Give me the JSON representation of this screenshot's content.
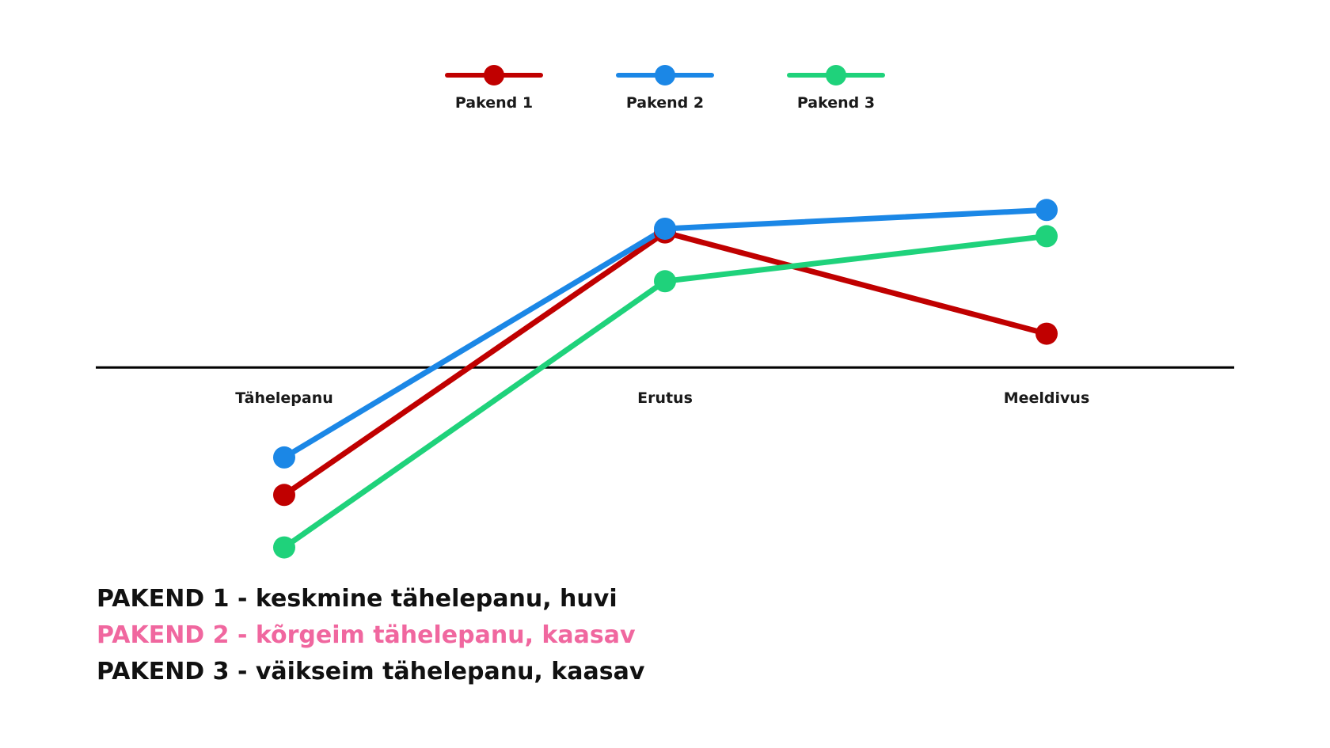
{
  "chart_data": {
    "type": "line",
    "categories": [
      "Tähelepanu",
      "Erutus",
      "Meeldivus"
    ],
    "series": [
      {
        "name": "Pakend 1",
        "color": "#c00000",
        "values": [
          -1.7,
          1.8,
          0.45
        ]
      },
      {
        "name": "Pakend 2",
        "color": "#1b87e6",
        "values": [
          -1.2,
          1.85,
          2.1
        ]
      },
      {
        "name": "Pakend 3",
        "color": "#1fd27b",
        "values": [
          -2.4,
          1.15,
          1.75
        ]
      }
    ],
    "ylim": [
      -2.7,
      3.0
    ],
    "baseline": 0,
    "legend_position": "top-center",
    "grid": false,
    "title": "",
    "xlabel": "",
    "ylabel": ""
  },
  "notes": [
    {
      "text": "PAKEND 1 - keskmine tähelepanu, huvi",
      "color": "#111111"
    },
    {
      "text": "PAKEND 2 - kõrgeim tähelepanu, kaasav",
      "color": "#f0679f"
    },
    {
      "text": "PAKEND 3 - väikseim tähelepanu, kaasav",
      "color": "#111111"
    }
  ]
}
